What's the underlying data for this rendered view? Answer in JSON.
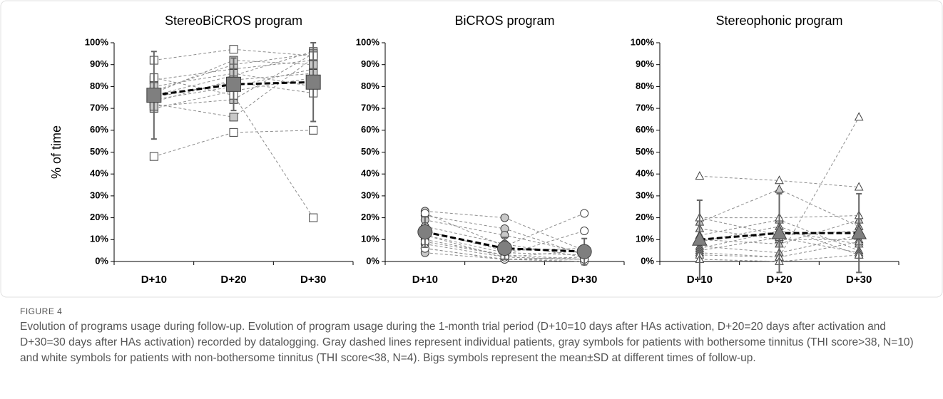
{
  "chart_data": [
    {
      "type": "line",
      "title": "StereoBiCROS program",
      "ylabel": "% of time",
      "marker": "square",
      "categories": [
        "D+10",
        "D+20",
        "D+30"
      ],
      "ylim": [
        0,
        100
      ],
      "yticks": [
        {
          "value": 0,
          "label": "0%"
        },
        {
          "value": 10,
          "label": "10%"
        },
        {
          "value": 20,
          "label": "20%"
        },
        {
          "value": 30,
          "label": "30%"
        },
        {
          "value": 40,
          "label": "40%"
        },
        {
          "value": 50,
          "label": "50%"
        },
        {
          "value": 60,
          "label": "60%"
        },
        {
          "value": 70,
          "label": "70%"
        },
        {
          "value": 80,
          "label": "80%"
        },
        {
          "value": 90,
          "label": "90%"
        },
        {
          "value": 100,
          "label": "100%"
        }
      ],
      "series": [
        {
          "color": "#c8c8c8",
          "values": [
            83,
            88,
            92
          ]
        },
        {
          "color": "#c8c8c8",
          "values": [
            78,
            90,
            95
          ]
        },
        {
          "color": "#c8c8c8",
          "values": [
            76,
            85,
            96
          ]
        },
        {
          "color": "#c8c8c8",
          "values": [
            74,
            80,
            88
          ]
        },
        {
          "color": "#c8c8c8",
          "values": [
            72,
            66,
            93
          ]
        },
        {
          "color": "#c8c8c8",
          "values": [
            70,
            78,
            84
          ]
        },
        {
          "color": "#c8c8c8",
          "values": [
            77,
            92,
            90
          ]
        },
        {
          "color": "#c8c8c8",
          "values": [
            80,
            86,
            80
          ]
        },
        {
          "color": "#c8c8c8",
          "values": [
            73,
            83,
            86
          ]
        },
        {
          "color": "#c8c8c8",
          "values": [
            71,
            74,
            95
          ]
        },
        {
          "color": "#ffffff",
          "values": [
            92,
            97,
            94
          ]
        },
        {
          "color": "#ffffff",
          "values": [
            48,
            59,
            60
          ]
        },
        {
          "color": "#ffffff",
          "values": [
            84,
            76,
            20
          ]
        },
        {
          "color": "#ffffff",
          "values": [
            75,
            82,
            77
          ]
        },
        {
          "color": "#7f7f7f",
          "values": [
            76,
            81,
            82
          ],
          "error": [
            20,
            12,
            18
          ]
        }
      ]
    },
    {
      "type": "line",
      "title": "BiCROS program",
      "marker": "circle",
      "categories": [
        "D+10",
        "D+20",
        "D+30"
      ],
      "ylim": [
        0,
        100
      ],
      "yticks": [
        {
          "value": 0,
          "label": "0%"
        },
        {
          "value": 10,
          "label": "10%"
        },
        {
          "value": 20,
          "label": "20%"
        },
        {
          "value": 30,
          "label": "30%"
        },
        {
          "value": 40,
          "label": "40%"
        },
        {
          "value": 50,
          "label": "50%"
        },
        {
          "value": 60,
          "label": "60%"
        },
        {
          "value": 70,
          "label": "70%"
        },
        {
          "value": 80,
          "label": "80%"
        },
        {
          "value": 90,
          "label": "90%"
        },
        {
          "value": 100,
          "label": "100%"
        }
      ],
      "series": [
        {
          "color": "#c8c8c8",
          "values": [
            23,
            20,
            5
          ]
        },
        {
          "color": "#c8c8c8",
          "values": [
            21,
            15,
            3
          ]
        },
        {
          "color": "#c8c8c8",
          "values": [
            19,
            12,
            4
          ]
        },
        {
          "color": "#c8c8c8",
          "values": [
            16,
            8,
            2
          ]
        },
        {
          "color": "#c8c8c8",
          "values": [
            14,
            5,
            6
          ]
        },
        {
          "color": "#c8c8c8",
          "values": [
            12,
            4,
            3
          ]
        },
        {
          "color": "#c8c8c8",
          "values": [
            10,
            3,
            1
          ]
        },
        {
          "color": "#c8c8c8",
          "values": [
            8,
            2,
            5
          ]
        },
        {
          "color": "#c8c8c8",
          "values": [
            6,
            1,
            2
          ]
        },
        {
          "color": "#c8c8c8",
          "values": [
            4,
            1,
            1
          ]
        },
        {
          "color": "#ffffff",
          "values": [
            22,
            7,
            22
          ]
        },
        {
          "color": "#ffffff",
          "values": [
            9,
            3,
            14
          ]
        },
        {
          "color": "#ffffff",
          "values": [
            6,
            1,
            0
          ]
        },
        {
          "color": "#ffffff",
          "values": [
            12,
            2,
            1
          ]
        },
        {
          "color": "#7f7f7f",
          "values": [
            13.5,
            6,
            4.5
          ],
          "error": [
            7,
            5,
            6
          ]
        }
      ]
    },
    {
      "type": "line",
      "title": "Stereophonic program",
      "marker": "triangle",
      "categories": [
        "D+10",
        "D+20",
        "D+30"
      ],
      "ylim": [
        0,
        100
      ],
      "yticks": [
        {
          "value": 0,
          "label": "0%"
        },
        {
          "value": 10,
          "label": "10%"
        },
        {
          "value": 20,
          "label": "20%"
        },
        {
          "value": 30,
          "label": "30%"
        },
        {
          "value": 40,
          "label": "40%"
        },
        {
          "value": 50,
          "label": "50%"
        },
        {
          "value": 60,
          "label": "60%"
        },
        {
          "value": 70,
          "label": "70%"
        },
        {
          "value": 80,
          "label": "80%"
        },
        {
          "value": 90,
          "label": "90%"
        },
        {
          "value": 100,
          "label": "100%"
        }
      ],
      "series": [
        {
          "color": "#c8c8c8",
          "values": [
            20,
            12,
            14
          ]
        },
        {
          "color": "#c8c8c8",
          "values": [
            18,
            33,
            16
          ]
        },
        {
          "color": "#c8c8c8",
          "values": [
            15,
            10,
            10
          ]
        },
        {
          "color": "#c8c8c8",
          "values": [
            12,
            19,
            5
          ]
        },
        {
          "color": "#c8c8c8",
          "values": [
            10,
            8,
            19
          ]
        },
        {
          "color": "#c8c8c8",
          "values": [
            9,
            16,
            3
          ]
        },
        {
          "color": "#c8c8c8",
          "values": [
            7,
            4,
            12
          ]
        },
        {
          "color": "#c8c8c8",
          "values": [
            6,
            14,
            8
          ]
        },
        {
          "color": "#c8c8c8",
          "values": [
            5,
            11,
            4
          ]
        },
        {
          "color": "#c8c8c8",
          "values": [
            4,
            2,
            9
          ]
        },
        {
          "color": "#ffffff",
          "values": [
            39,
            37,
            34
          ]
        },
        {
          "color": "#ffffff",
          "values": [
            20,
            20,
            21
          ]
        },
        {
          "color": "#ffffff",
          "values": [
            3,
            2,
            66
          ]
        },
        {
          "color": "#ffffff",
          "values": [
            1,
            0,
            3
          ]
        },
        {
          "color": "#7f7f7f",
          "values": [
            10,
            13,
            13
          ],
          "error": [
            18,
            18,
            18
          ]
        }
      ]
    }
  ],
  "caption": {
    "label": "FIGURE 4",
    "text": "Evolution of programs usage during follow-up. Evolution of program usage during the 1-month trial period (D+10=10 days after HAs activation, D+20=20 days after activation and D+30=30 days after HAs activation) recorded by datalogging. Gray dashed lines represent individual patients, gray symbols for patients with bothersome tinnitus (THI score>38, N=10) and white symbols for patients with non-bothersome tinnitus (THI score<38, N=4). Bigs symbols represent the mean±SD at different times of follow-up."
  }
}
